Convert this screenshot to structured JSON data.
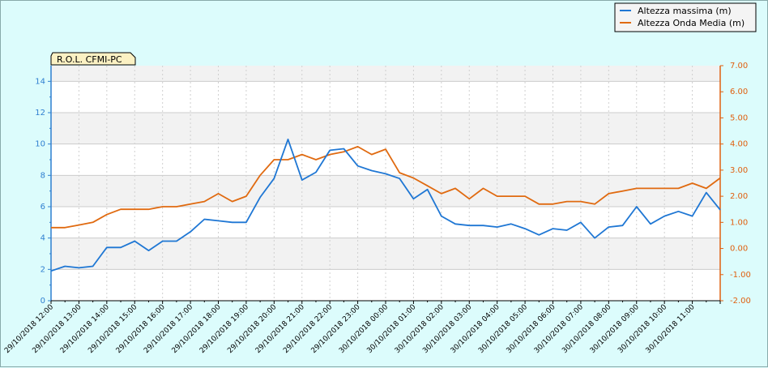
{
  "chart_data": {
    "type": "line",
    "title": "R.O.L. CFMI-PC",
    "legend_position": "top-right",
    "colors": {
      "left_axis": "#2f7fd0",
      "right_axis": "#e06010",
      "series_1": "#1f77d4",
      "series_2": "#e06a10",
      "plot_bg_band": "#f2f2f2"
    },
    "x": [
      "29/10/2018 12:00",
      "",
      "29/10/2018 13:00",
      "",
      "29/10/2018 14:00",
      "",
      "29/10/2018 15:00",
      "",
      "29/10/2018 16:00",
      "",
      "29/10/2018 17:00",
      "",
      "29/10/2018 18:00",
      "",
      "29/10/2018 19:00",
      "",
      "29/10/2018 20:00",
      "",
      "29/10/2018 21:00",
      "",
      "29/10/2018 22:00",
      "",
      "29/10/2018 23:00",
      "",
      "30/10/2018 00:00",
      "",
      "30/10/2018 01:00",
      "",
      "30/10/2018 02:00",
      "",
      "30/10/2018 03:00",
      "",
      "30/10/2018 04:00",
      "",
      "30/10/2018 05:00",
      "",
      "30/10/2018 06:00",
      "",
      "30/10/2018 07:00",
      "",
      "30/10/2018 08:00",
      "",
      "30/10/2018 09:00",
      "",
      "30/10/2018 10:00",
      "",
      "30/10/2018 11:00",
      "",
      ""
    ],
    "x_tick_labels": [
      "29/10/2018 12:00",
      "29/10/2018 13:00",
      "29/10/2018 14:00",
      "29/10/2018 15:00",
      "29/10/2018 16:00",
      "29/10/2018 17:00",
      "29/10/2018 18:00",
      "29/10/2018 19:00",
      "29/10/2018 20:00",
      "29/10/2018 21:00",
      "29/10/2018 22:00",
      "29/10/2018 23:00",
      "30/10/2018 00:00",
      "30/10/2018 01:00",
      "30/10/2018 02:00",
      "30/10/2018 03:00",
      "30/10/2018 04:00",
      "30/10/2018 05:00",
      "30/10/2018 06:00",
      "30/10/2018 07:00",
      "30/10/2018 08:00",
      "30/10/2018 09:00",
      "30/10/2018 10:00",
      "30/10/2018 11:00"
    ],
    "y_left": {
      "ylim": [
        0,
        15
      ],
      "ticks": [
        0,
        2,
        4,
        6,
        8,
        10,
        12,
        14
      ]
    },
    "y_right": {
      "ylim": [
        -2,
        7
      ],
      "ticks": [
        "-2.00",
        "-1.00",
        "0.00",
        "1.00",
        "2.00",
        "3.00",
        "4.00",
        "5.00",
        "6.00",
        "7.00"
      ]
    },
    "series": [
      {
        "name": "Altezza massima (m)",
        "axis": "left",
        "values": [
          1.9,
          2.2,
          2.1,
          2.2,
          3.4,
          3.4,
          3.8,
          3.2,
          3.8,
          3.8,
          4.4,
          5.2,
          5.1,
          5.0,
          5.0,
          6.6,
          7.8,
          10.3,
          7.7,
          8.2,
          9.6,
          9.7,
          8.6,
          8.3,
          8.1,
          7.8,
          6.5,
          7.1,
          5.4,
          4.9,
          4.8,
          4.8,
          4.7,
          4.9,
          4.6,
          4.2,
          4.6,
          4.5,
          5.0,
          4.0,
          4.7,
          4.8,
          6.0,
          4.9,
          5.4,
          5.7,
          5.4,
          6.9,
          5.8
        ]
      },
      {
        "name": "Altezza Onda Media (m)",
        "axis": "right",
        "values": [
          0.8,
          0.8,
          0.9,
          1.0,
          1.3,
          1.5,
          1.5,
          1.5,
          1.6,
          1.6,
          1.7,
          1.8,
          2.1,
          1.8,
          2.0,
          2.8,
          3.4,
          3.4,
          3.6,
          3.4,
          3.6,
          3.7,
          3.9,
          3.6,
          3.8,
          2.9,
          2.7,
          2.4,
          2.1,
          2.3,
          1.9,
          2.3,
          2.0,
          2.0,
          2.0,
          1.7,
          1.7,
          1.8,
          1.8,
          1.7,
          2.1,
          2.2,
          2.3,
          2.3,
          2.3,
          2.3,
          2.5,
          2.3,
          2.7
        ]
      }
    ]
  }
}
